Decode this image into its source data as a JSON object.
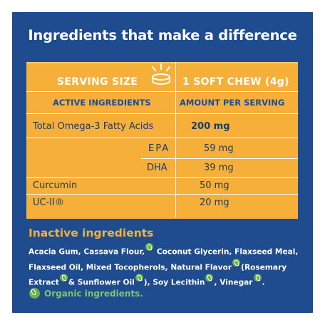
{
  "title": "Ingredients that make a difference",
  "facts": {
    "serving_size_label": "SERVING SIZE",
    "serving_size_value": "1 SOFT CHEW (4g)",
    "col_active": "ACTIVE INGREDIENTS",
    "col_amount": "AMOUNT PER SERVING",
    "rows": [
      {
        "name": "Total Omega-3 Fatty Acids",
        "amount": "200 mg"
      },
      {
        "name": "EPA",
        "amount": "59 mg"
      },
      {
        "name": "DHA",
        "amount": "39 mg"
      },
      {
        "name": "Curcumin",
        "amount": "50 mg"
      },
      {
        "name": "UC-II®",
        "amount": "20 mg"
      }
    ]
  },
  "inactive": {
    "title": "Inactive ingredients",
    "parts": [
      "Acacia Gum, Cassava Flour,",
      " Coconut Glycerin, Flaxseed Meal, Flaxseed Oil, Mixed Tocopherols, Natural Flavor",
      "(Rosemary Extract",
      "& Sunflower Oil",
      "), Soy Lecithin",
      ", Vinegar",
      "."
    ]
  },
  "organic_note": "Organic ingredients.",
  "colors": {
    "panel": "#1f4b8f",
    "table": "#f6b03a",
    "leaf": "#6ab04c"
  },
  "icons": {
    "serving": "chew-icon",
    "organic": "leaf-icon"
  }
}
